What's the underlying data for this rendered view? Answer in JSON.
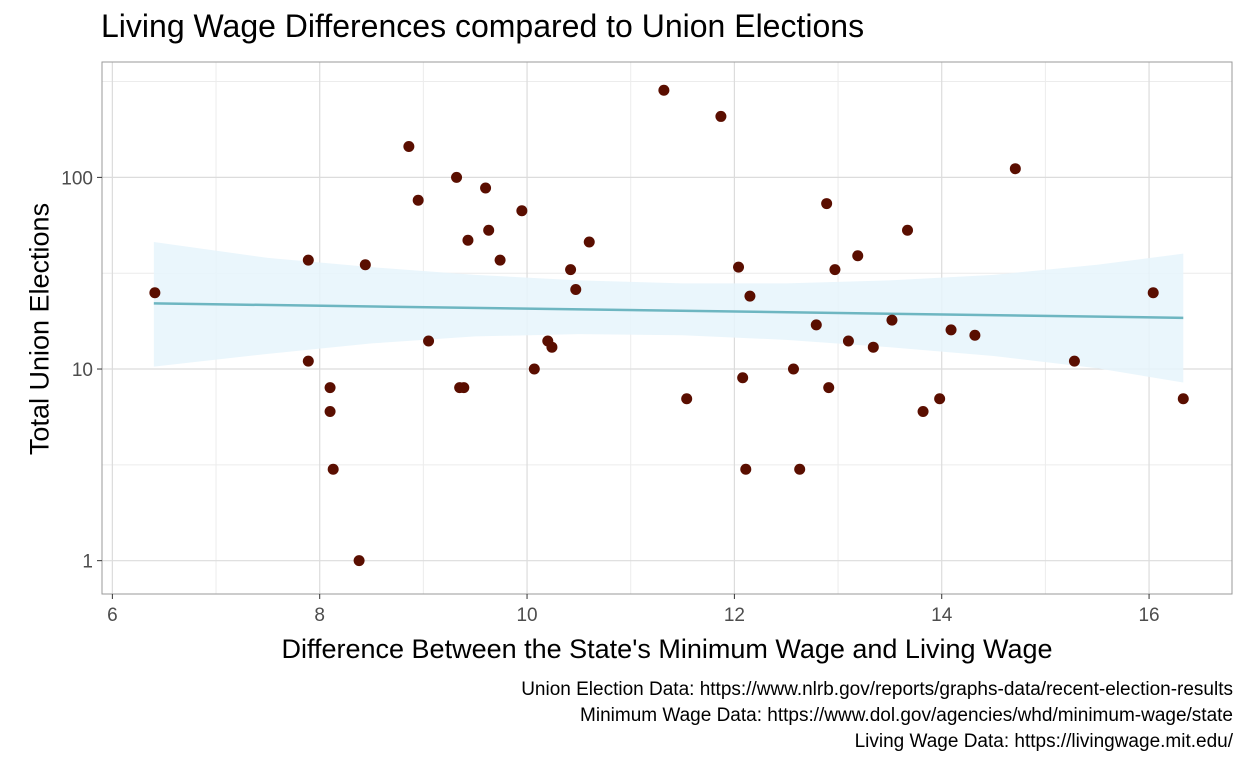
{
  "chart_data": {
    "type": "scatter",
    "title": "Living Wage Differences compared to Union Elections",
    "xlabel": "Difference Between the State's Minimum Wage and Living Wage",
    "ylabel": "Total Union Elections",
    "x_ticks": [
      6,
      8,
      10,
      12,
      14,
      16
    ],
    "y_ticks": [
      1,
      10,
      100
    ],
    "xlim": [
      5.9,
      16.8
    ],
    "ylim": [
      0.67,
      400
    ],
    "y_scale": "log10",
    "grid": true,
    "point_color": "#5a0e00",
    "trend": {
      "type": "linear fit with confidence band",
      "line": [
        [
          6.4,
          22
        ],
        [
          16.33,
          18.5
        ]
      ],
      "band_color": "#e6f5fc",
      "line_color": "#6eb6c1",
      "band": [
        [
          6.4,
          10.3,
          46
        ],
        [
          7.5,
          12.0,
          38
        ],
        [
          8.5,
          13.6,
          34
        ],
        [
          9.5,
          14.8,
          31
        ],
        [
          10.5,
          15.2,
          29
        ],
        [
          11.5,
          15.0,
          28
        ],
        [
          12.5,
          14.2,
          28
        ],
        [
          13.5,
          13.0,
          29
        ],
        [
          14.5,
          11.7,
          31
        ],
        [
          15.5,
          10.1,
          35
        ],
        [
          16.33,
          8.5,
          40
        ]
      ]
    },
    "points": [
      {
        "x": 6.41,
        "y": 25
      },
      {
        "x": 7.89,
        "y": 37
      },
      {
        "x": 7.89,
        "y": 11
      },
      {
        "x": 8.1,
        "y": 8
      },
      {
        "x": 8.1,
        "y": 6
      },
      {
        "x": 8.13,
        "y": 3
      },
      {
        "x": 8.38,
        "y": 1
      },
      {
        "x": 8.44,
        "y": 35
      },
      {
        "x": 8.86,
        "y": 145
      },
      {
        "x": 8.95,
        "y": 76
      },
      {
        "x": 9.05,
        "y": 14
      },
      {
        "x": 9.32,
        "y": 100
      },
      {
        "x": 9.35,
        "y": 8
      },
      {
        "x": 9.39,
        "y": 8
      },
      {
        "x": 9.43,
        "y": 47
      },
      {
        "x": 9.6,
        "y": 88
      },
      {
        "x": 9.63,
        "y": 53
      },
      {
        "x": 9.74,
        "y": 37
      },
      {
        "x": 9.95,
        "y": 67
      },
      {
        "x": 10.07,
        "y": 10
      },
      {
        "x": 10.2,
        "y": 14
      },
      {
        "x": 10.24,
        "y": 13
      },
      {
        "x": 10.42,
        "y": 33
      },
      {
        "x": 10.47,
        "y": 26
      },
      {
        "x": 10.6,
        "y": 46
      },
      {
        "x": 11.32,
        "y": 285
      },
      {
        "x": 11.54,
        "y": 7
      },
      {
        "x": 11.87,
        "y": 208
      },
      {
        "x": 12.04,
        "y": 34
      },
      {
        "x": 12.08,
        "y": 9
      },
      {
        "x": 12.11,
        "y": 3
      },
      {
        "x": 12.15,
        "y": 24
      },
      {
        "x": 12.57,
        "y": 10
      },
      {
        "x": 12.63,
        "y": 3
      },
      {
        "x": 12.79,
        "y": 17
      },
      {
        "x": 12.89,
        "y": 73
      },
      {
        "x": 12.91,
        "y": 8
      },
      {
        "x": 12.97,
        "y": 33
      },
      {
        "x": 13.1,
        "y": 14
      },
      {
        "x": 13.19,
        "y": 39
      },
      {
        "x": 13.34,
        "y": 13
      },
      {
        "x": 13.52,
        "y": 18
      },
      {
        "x": 13.67,
        "y": 53
      },
      {
        "x": 13.82,
        "y": 6
      },
      {
        "x": 13.98,
        "y": 7
      },
      {
        "x": 14.09,
        "y": 16
      },
      {
        "x": 14.32,
        "y": 15
      },
      {
        "x": 14.71,
        "y": 111
      },
      {
        "x": 15.28,
        "y": 11
      },
      {
        "x": 16.04,
        "y": 25
      },
      {
        "x": 16.33,
        "y": 7
      }
    ]
  },
  "captions": [
    "Union Election Data: https://www.nlrb.gov/reports/graphs-data/recent-election-results",
    "Minimum Wage Data: https://www.dol.gov/agencies/whd/minimum-wage/state",
    "Living Wage Data: https://livingwage.mit.edu/"
  ]
}
